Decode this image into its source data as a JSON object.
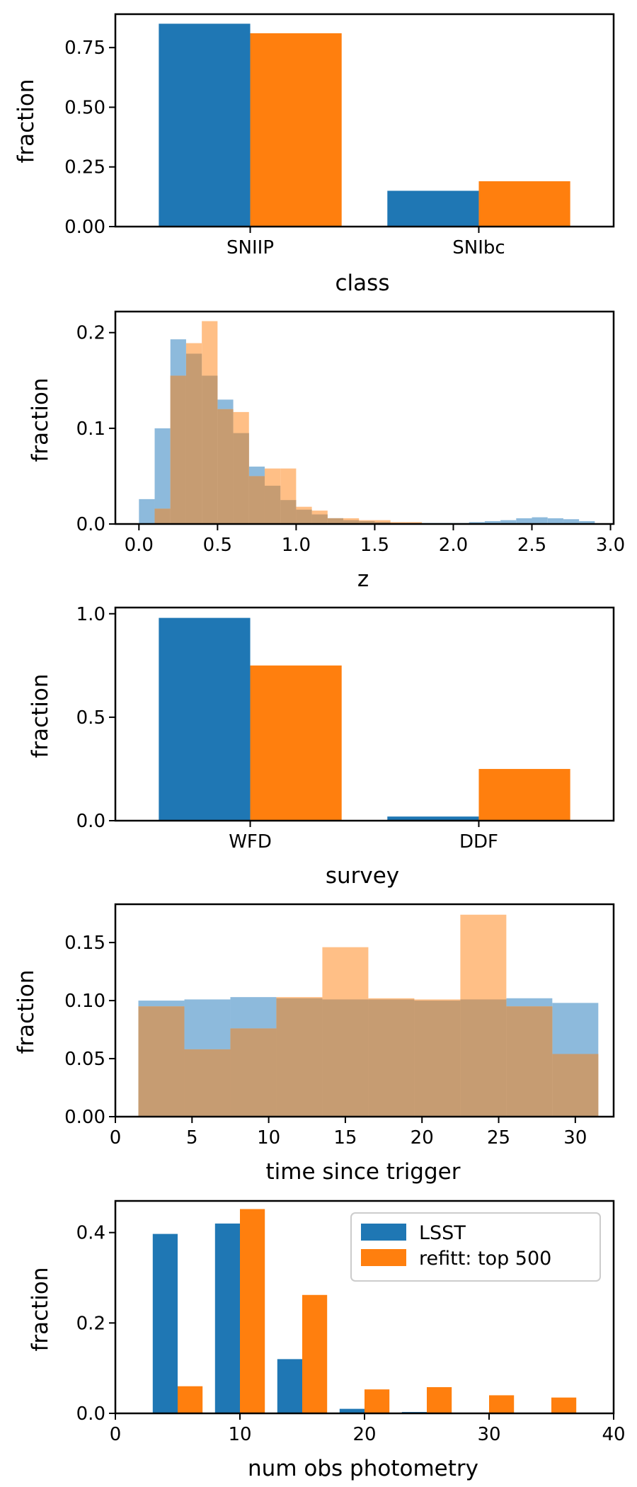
{
  "colors": {
    "lsst": "#1f77b4",
    "refitt": "#ff7f0e",
    "lsst_hist": "#8dbadc",
    "refitt_hist": "#ffbf86",
    "overlap_hist": "#c69c72"
  },
  "chart_data": [
    {
      "id": "class",
      "type": "bar",
      "xlabel": "class",
      "ylabel": "fraction",
      "categories": [
        "SNIIP",
        "SNIbc"
      ],
      "series": [
        {
          "name": "LSST",
          "values": [
            0.85,
            0.15
          ]
        },
        {
          "name": "refitt: top 500",
          "values": [
            0.81,
            0.19
          ]
        }
      ],
      "ylim": [
        0,
        0.89
      ],
      "yticks": [
        0.0,
        0.25,
        0.5,
        0.75
      ],
      "ytick_labels": [
        "0.00",
        "0.25",
        "0.50",
        "0.75"
      ]
    },
    {
      "id": "z",
      "type": "histogram",
      "xlabel": "z",
      "ylabel": "fraction",
      "xlim": [
        -0.15,
        3.02
      ],
      "ylim": [
        0,
        0.222
      ],
      "xticks": [
        0.0,
        0.5,
        1.0,
        1.5,
        2.0,
        2.5,
        3.0
      ],
      "xtick_labels": [
        "0.0",
        "0.5",
        "1.0",
        "1.5",
        "2.0",
        "2.5",
        "3.0"
      ],
      "yticks": [
        0.0,
        0.1,
        0.2
      ],
      "ytick_labels": [
        "0.0",
        "0.1",
        "0.2"
      ],
      "series": [
        {
          "name": "LSST",
          "edges": [
            0.0,
            0.1,
            0.2,
            0.3,
            0.4,
            0.5,
            0.6,
            0.7,
            0.8,
            0.9,
            1.0,
            1.1,
            1.2,
            1.3,
            1.4,
            1.5,
            1.6,
            1.7,
            1.8,
            1.9,
            2.0,
            2.1,
            2.2,
            2.3,
            2.4,
            2.5,
            2.6,
            2.7,
            2.8,
            2.9
          ],
          "values": [
            0.026,
            0.1,
            0.193,
            0.178,
            0.155,
            0.13,
            0.095,
            0.06,
            0.04,
            0.025,
            0.015,
            0.01,
            0.006,
            0.004,
            0.003,
            0.002,
            0.001,
            0.001,
            0.001,
            0.001,
            0.001,
            0.002,
            0.003,
            0.004,
            0.006,
            0.007,
            0.006,
            0.005,
            0.003
          ]
        },
        {
          "name": "refitt: top 500",
          "edges": [
            0.1,
            0.2,
            0.3,
            0.4,
            0.5,
            0.6,
            0.7,
            0.8,
            0.9,
            1.0,
            1.1,
            1.2,
            1.3,
            1.4,
            1.5,
            1.6,
            1.7,
            1.8
          ],
          "values": [
            0.016,
            0.155,
            0.189,
            0.212,
            0.12,
            0.117,
            0.05,
            0.058,
            0.058,
            0.018,
            0.014,
            0.006,
            0.006,
            0.004,
            0.004,
            0.002,
            0.002
          ]
        }
      ]
    },
    {
      "id": "survey",
      "type": "bar",
      "xlabel": "survey",
      "ylabel": "fraction",
      "categories": [
        "WFD",
        "DDF"
      ],
      "series": [
        {
          "name": "LSST",
          "values": [
            0.98,
            0.02
          ]
        },
        {
          "name": "refitt: top 500",
          "values": [
            0.75,
            0.25
          ]
        }
      ],
      "ylim": [
        0,
        1.03
      ],
      "yticks": [
        0.0,
        0.5,
        1.0
      ],
      "ytick_labels": [
        "0.0",
        "0.5",
        "1.0"
      ]
    },
    {
      "id": "time",
      "type": "histogram",
      "xlabel": "time since trigger",
      "ylabel": "fraction",
      "xlim": [
        0,
        32.5
      ],
      "ylim": [
        0,
        0.183
      ],
      "xticks": [
        0,
        5,
        10,
        15,
        20,
        25,
        30
      ],
      "xtick_labels": [
        "0",
        "5",
        "10",
        "15",
        "20",
        "25",
        "30"
      ],
      "yticks": [
        0.0,
        0.05,
        0.1,
        0.15
      ],
      "ytick_labels": [
        "0.00",
        "0.05",
        "0.10",
        "0.15"
      ],
      "series": [
        {
          "name": "LSST",
          "edges": [
            1.5,
            4.5,
            7.5,
            10.5,
            13.5,
            16.5,
            19.5,
            22.5,
            25.5,
            28.5,
            31.5
          ],
          "values": [
            0.1,
            0.101,
            0.103,
            0.102,
            0.101,
            0.101,
            0.1,
            0.101,
            0.102,
            0.098
          ]
        },
        {
          "name": "refitt: top 500",
          "edges": [
            1.5,
            4.5,
            7.5,
            10.5,
            13.5,
            16.5,
            19.5,
            22.5,
            25.5,
            28.5,
            31.5
          ],
          "values": [
            0.095,
            0.058,
            0.076,
            0.103,
            0.146,
            0.102,
            0.101,
            0.174,
            0.095,
            0.054
          ]
        }
      ]
    },
    {
      "id": "numobs",
      "type": "bar",
      "xlabel": "num obs photometry",
      "ylabel": "fraction",
      "xlim": [
        0,
        40
      ],
      "ylim": [
        0,
        0.47
      ],
      "xticks": [
        0,
        10,
        20,
        30,
        40
      ],
      "xtick_labels": [
        "0",
        "10",
        "20",
        "30",
        "40"
      ],
      "yticks": [
        0.0,
        0.2,
        0.4
      ],
      "ytick_labels": [
        "0.0",
        "0.2",
        "0.4"
      ],
      "bin_centers": [
        5,
        10,
        15,
        20,
        25,
        30,
        35
      ],
      "series": [
        {
          "name": "LSST",
          "values": [
            0.397,
            0.42,
            0.12,
            0.01,
            0.003,
            0.0,
            0.0
          ]
        },
        {
          "name": "refitt: top 500",
          "values": [
            0.06,
            0.452,
            0.262,
            0.053,
            0.058,
            0.04,
            0.035
          ]
        }
      ],
      "legend": {
        "position": "top-right",
        "entries": [
          "LSST",
          "refitt: top 500"
        ]
      }
    }
  ]
}
